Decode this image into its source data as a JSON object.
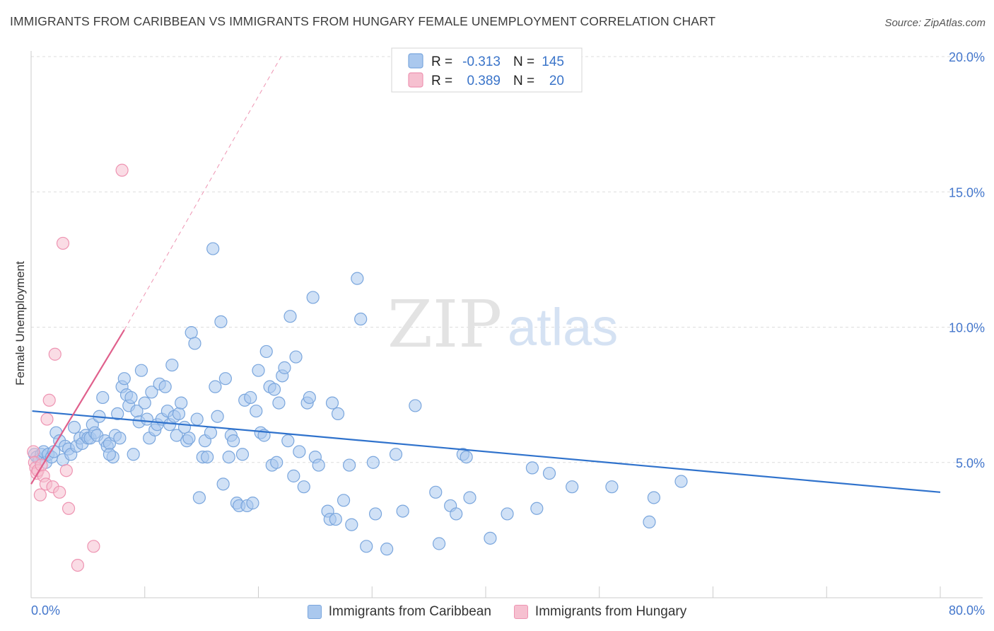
{
  "header": {
    "title": "IMMIGRANTS FROM CARIBBEAN VS IMMIGRANTS FROM HUNGARY FEMALE UNEMPLOYMENT CORRELATION CHART",
    "source": "Source: ZipAtlas.com"
  },
  "watermark": {
    "zip": "ZIP",
    "atlas": "atlas"
  },
  "stats_legend": {
    "r_label": "R =",
    "n_label": "N =",
    "rows": [
      {
        "series": "Immigrants from Caribbean",
        "r": "-0.313",
        "n": "145"
      },
      {
        "series": "Immigrants from Hungary",
        "r": "0.389",
        "n": "20"
      }
    ]
  },
  "colors": {
    "caribbean_fill": "#aac8ee",
    "caribbean_stroke": "#7aa6dd",
    "caribbean_line": "#2f72cc",
    "hungary_fill": "#f6c0d0",
    "hungary_stroke": "#ee94b2",
    "hungary_line": "#e0608c"
  },
  "chart_data": {
    "type": "scatter",
    "title": "IMMIGRANTS FROM CARIBBEAN VS IMMIGRANTS FROM HUNGARY FEMALE UNEMPLOYMENT CORRELATION CHART",
    "xlabel": "",
    "ylabel": "Female Unemployment",
    "xlim": [
      0,
      80
    ],
    "ylim": [
      0,
      20
    ],
    "x_tick_labels": [
      "0.0%",
      "80.0%"
    ],
    "y_ticks": [
      5,
      10,
      15,
      20
    ],
    "y_tick_labels": [
      "5.0%",
      "10.0%",
      "15.0%",
      "20.0%"
    ],
    "grid": true,
    "legend_position": "bottom",
    "series": [
      {
        "name": "Immigrants from Caribbean",
        "r": -0.313,
        "n": 145,
        "trend": {
          "x": [
            0.1,
            80
          ],
          "y": [
            6.9,
            3.9
          ]
        },
        "points": [
          [
            0.3,
            5.3
          ],
          [
            0.5,
            5.2
          ],
          [
            0.7,
            5.1
          ],
          [
            0.9,
            5.3
          ],
          [
            1.1,
            5.4
          ],
          [
            1.3,
            5.0
          ],
          [
            1.5,
            5.3
          ],
          [
            1.8,
            5.2
          ],
          [
            2.0,
            5.4
          ],
          [
            2.2,
            6.1
          ],
          [
            2.5,
            5.8
          ],
          [
            2.8,
            5.1
          ],
          [
            3.0,
            5.6
          ],
          [
            3.3,
            5.5
          ],
          [
            3.5,
            5.3
          ],
          [
            3.8,
            6.3
          ],
          [
            4.0,
            5.6
          ],
          [
            4.3,
            5.9
          ],
          [
            4.5,
            5.7
          ],
          [
            4.8,
            6.0
          ],
          [
            5.0,
            5.9
          ],
          [
            5.2,
            5.9
          ],
          [
            5.4,
            6.4
          ],
          [
            5.6,
            6.1
          ],
          [
            5.8,
            6.0
          ],
          [
            6.0,
            6.7
          ],
          [
            6.3,
            7.4
          ],
          [
            6.5,
            5.8
          ],
          [
            6.7,
            5.6
          ],
          [
            6.9,
            5.7
          ],
          [
            7.2,
            5.2
          ],
          [
            7.4,
            6.0
          ],
          [
            7.6,
            6.8
          ],
          [
            7.8,
            5.9
          ],
          [
            8.0,
            7.8
          ],
          [
            8.2,
            8.1
          ],
          [
            8.4,
            7.5
          ],
          [
            8.6,
            7.1
          ],
          [
            8.8,
            7.4
          ],
          [
            9.0,
            5.3
          ],
          [
            9.3,
            6.9
          ],
          [
            9.5,
            6.5
          ],
          [
            9.7,
            8.4
          ],
          [
            10.0,
            7.2
          ],
          [
            10.2,
            6.6
          ],
          [
            10.4,
            5.9
          ],
          [
            10.6,
            7.6
          ],
          [
            10.9,
            6.2
          ],
          [
            11.1,
            6.4
          ],
          [
            11.3,
            7.9
          ],
          [
            11.5,
            6.6
          ],
          [
            11.8,
            7.8
          ],
          [
            12.0,
            6.9
          ],
          [
            12.2,
            6.4
          ],
          [
            12.4,
            8.6
          ],
          [
            12.6,
            6.7
          ],
          [
            12.8,
            6.0
          ],
          [
            13.0,
            6.8
          ],
          [
            13.2,
            7.2
          ],
          [
            13.5,
            6.3
          ],
          [
            13.7,
            5.8
          ],
          [
            13.9,
            5.9
          ],
          [
            14.1,
            9.8
          ],
          [
            14.4,
            9.4
          ],
          [
            14.6,
            6.6
          ],
          [
            14.8,
            3.7
          ],
          [
            15.1,
            5.2
          ],
          [
            15.3,
            5.8
          ],
          [
            15.5,
            5.2
          ],
          [
            15.8,
            6.1
          ],
          [
            16.0,
            12.9
          ],
          [
            16.2,
            7.8
          ],
          [
            16.4,
            6.7
          ],
          [
            16.7,
            10.2
          ],
          [
            16.9,
            4.2
          ],
          [
            17.1,
            8.1
          ],
          [
            17.4,
            5.2
          ],
          [
            17.6,
            6.0
          ],
          [
            17.8,
            5.8
          ],
          [
            18.1,
            3.5
          ],
          [
            18.3,
            3.4
          ],
          [
            18.6,
            5.3
          ],
          [
            18.8,
            7.3
          ],
          [
            19.0,
            3.4
          ],
          [
            19.3,
            7.4
          ],
          [
            19.5,
            3.5
          ],
          [
            19.8,
            6.9
          ],
          [
            20.0,
            8.4
          ],
          [
            20.2,
            6.1
          ],
          [
            20.5,
            6.0
          ],
          [
            20.7,
            9.1
          ],
          [
            21.0,
            7.8
          ],
          [
            21.2,
            4.9
          ],
          [
            21.4,
            7.7
          ],
          [
            21.6,
            5.0
          ],
          [
            21.8,
            7.2
          ],
          [
            22.1,
            8.2
          ],
          [
            22.3,
            8.5
          ],
          [
            22.6,
            5.8
          ],
          [
            22.8,
            10.4
          ],
          [
            23.1,
            4.5
          ],
          [
            23.3,
            8.9
          ],
          [
            23.6,
            5.4
          ],
          [
            24.0,
            4.1
          ],
          [
            24.3,
            7.2
          ],
          [
            24.5,
            7.4
          ],
          [
            24.8,
            11.1
          ],
          [
            25.0,
            5.2
          ],
          [
            25.3,
            4.9
          ],
          [
            26.1,
            3.2
          ],
          [
            26.3,
            2.9
          ],
          [
            26.5,
            7.2
          ],
          [
            26.8,
            2.9
          ],
          [
            27.0,
            6.8
          ],
          [
            27.5,
            3.6
          ],
          [
            28.0,
            4.9
          ],
          [
            28.2,
            2.7
          ],
          [
            28.7,
            11.8
          ],
          [
            29.0,
            10.3
          ],
          [
            29.5,
            1.9
          ],
          [
            30.1,
            5.0
          ],
          [
            30.3,
            3.1
          ],
          [
            31.3,
            1.8
          ],
          [
            32.1,
            5.3
          ],
          [
            32.7,
            3.2
          ],
          [
            33.8,
            7.1
          ],
          [
            35.6,
            3.9
          ],
          [
            35.9,
            2.0
          ],
          [
            36.9,
            3.4
          ],
          [
            37.4,
            3.1
          ],
          [
            38.0,
            5.3
          ],
          [
            38.3,
            5.2
          ],
          [
            38.6,
            3.7
          ],
          [
            40.4,
            2.2
          ],
          [
            41.9,
            3.1
          ],
          [
            44.1,
            4.8
          ],
          [
            44.5,
            3.3
          ],
          [
            45.6,
            4.6
          ],
          [
            47.6,
            4.1
          ],
          [
            51.1,
            4.1
          ],
          [
            54.4,
            2.8
          ],
          [
            54.8,
            3.7
          ],
          [
            57.2,
            4.3
          ],
          [
            6.9,
            5.3
          ]
        ]
      },
      {
        "name": "Immigrants from Hungary",
        "r": 0.389,
        "n": 20,
        "trend": {
          "x": [
            0.0,
            8.2
          ],
          "y": [
            4.2,
            9.9
          ]
        },
        "trend_dashed_extension": {
          "x": [
            8.2,
            22.0
          ],
          "y": [
            9.9,
            20.0
          ]
        },
        "points": [
          [
            0.2,
            5.4
          ],
          [
            0.3,
            5.0
          ],
          [
            0.4,
            4.8
          ],
          [
            0.5,
            4.6
          ],
          [
            0.6,
            4.7
          ],
          [
            0.8,
            3.8
          ],
          [
            0.9,
            4.9
          ],
          [
            1.1,
            4.5
          ],
          [
            1.3,
            4.2
          ],
          [
            1.4,
            6.6
          ],
          [
            1.6,
            7.3
          ],
          [
            1.9,
            4.1
          ],
          [
            2.1,
            9.0
          ],
          [
            2.5,
            3.9
          ],
          [
            2.8,
            13.1
          ],
          [
            3.1,
            4.7
          ],
          [
            3.3,
            3.3
          ],
          [
            4.1,
            1.2
          ],
          [
            5.5,
            1.9
          ],
          [
            8.0,
            15.8
          ]
        ]
      }
    ]
  }
}
